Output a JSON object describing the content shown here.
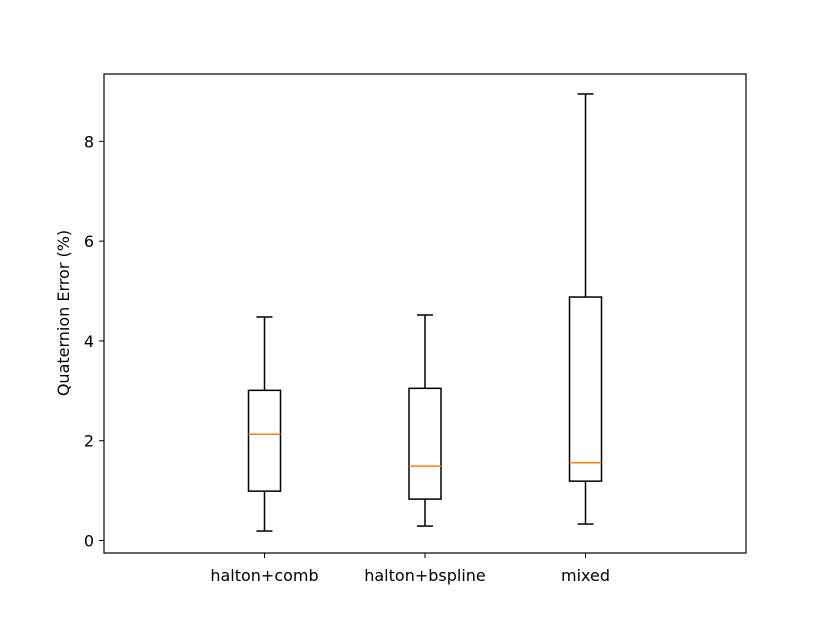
{
  "chart_data": {
    "type": "box",
    "title": "",
    "xlabel": "",
    "ylabel": "Quaternion Error (%)",
    "ylim": [
      -0.25,
      9.35
    ],
    "yticks": [
      0,
      2,
      4,
      6,
      8
    ],
    "grid": false,
    "colors": {
      "box": "#000000",
      "median": "#ff7f0e"
    },
    "categories": [
      "halton+comb",
      "halton+bspline",
      "mixed"
    ],
    "boxes": [
      {
        "label": "halton+comb",
        "whisker_low": 0.19,
        "q1": 0.99,
        "median": 2.13,
        "q3": 3.01,
        "whisker_high": 4.48
      },
      {
        "label": "halton+bspline",
        "whisker_low": 0.29,
        "q1": 0.83,
        "median": 1.49,
        "q3": 3.05,
        "whisker_high": 4.52
      },
      {
        "label": "mixed",
        "whisker_low": 0.33,
        "q1": 1.19,
        "median": 1.56,
        "q3": 4.88,
        "whisker_high": 8.95
      }
    ]
  }
}
